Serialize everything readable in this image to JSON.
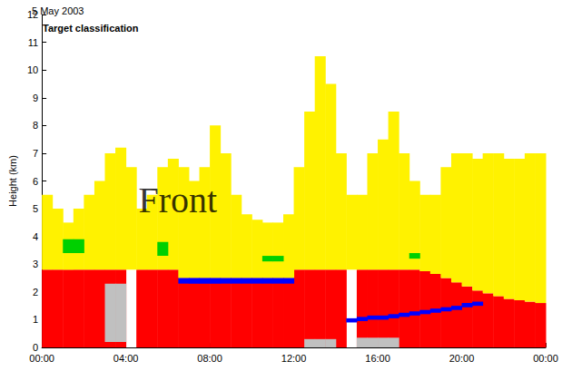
{
  "chart_data": {
    "type": "range",
    "title": "Target classification",
    "subtitle": "5 May 2003",
    "ylabel": "Height (km)",
    "annotations": [
      {
        "text": "Front",
        "x": 4.6,
        "y": 5.3
      }
    ],
    "x": [
      0,
      0.5,
      1,
      1.5,
      2,
      2.5,
      3,
      3.5,
      4,
      4.5,
      5,
      5.5,
      6,
      6.5,
      7,
      7.5,
      8,
      8.5,
      9,
      9.5,
      10,
      10.5,
      11,
      11.5,
      12,
      12.5,
      13,
      13.5,
      14,
      14.5,
      15,
      15.5,
      16,
      16.5,
      17,
      17.5,
      18,
      18.5,
      19,
      19.5,
      20,
      20.5,
      21,
      21.5,
      22,
      22.5,
      23,
      23.5
    ],
    "xlim": [
      0,
      24
    ],
    "xticks": [
      {
        "value": 0,
        "label": "00:00"
      },
      {
        "value": 4,
        "label": "04:00"
      },
      {
        "value": 8,
        "label": "08:00"
      },
      {
        "value": 12,
        "label": "12:00"
      },
      {
        "value": 16,
        "label": "16:00"
      },
      {
        "value": 20,
        "label": "20:00"
      },
      {
        "value": 24,
        "label": "00:00"
      }
    ],
    "ylim": [
      0,
      12
    ],
    "yticks": [
      0,
      1,
      2,
      3,
      4,
      5,
      6,
      7,
      8,
      9,
      10,
      11,
      12
    ],
    "grid": false,
    "series": [
      {
        "color": "#ff0000",
        "bottom": [
          0,
          0,
          0,
          0,
          0,
          0,
          0,
          0,
          null,
          0,
          0,
          0,
          0,
          0,
          0,
          0,
          0,
          0,
          0,
          0,
          0,
          0,
          0,
          0,
          0,
          0,
          0,
          0,
          0,
          null,
          0,
          0,
          0,
          0,
          0,
          0,
          0,
          0,
          0,
          0,
          0,
          0,
          0,
          0,
          0,
          0,
          0,
          0
        ],
        "top": [
          2.8,
          2.8,
          2.8,
          2.8,
          2.8,
          2.8,
          2.8,
          2.8,
          null,
          2.8,
          2.8,
          2.8,
          2.8,
          2.5,
          2.5,
          2.5,
          2.5,
          2.5,
          2.5,
          2.5,
          2.5,
          2.5,
          2.5,
          2.5,
          2.8,
          2.8,
          2.8,
          2.8,
          2.8,
          null,
          2.8,
          2.8,
          2.8,
          2.8,
          2.8,
          2.8,
          2.75,
          2.65,
          2.5,
          2.35,
          2.2,
          2.05,
          1.95,
          1.85,
          1.75,
          1.7,
          1.65,
          1.6
        ]
      },
      {
        "color": "#fff200",
        "bottom": [
          2.8,
          2.8,
          2.8,
          2.8,
          2.8,
          2.8,
          2.8,
          2.8,
          2.8,
          2.8,
          2.8,
          2.8,
          2.8,
          2.5,
          2.5,
          2.5,
          2.5,
          2.5,
          2.5,
          2.5,
          2.5,
          2.5,
          2.5,
          2.5,
          2.8,
          2.8,
          2.8,
          2.8,
          2.8,
          2.8,
          2.8,
          2.8,
          2.8,
          2.8,
          2.8,
          2.8,
          2.75,
          2.65,
          2.5,
          2.35,
          2.2,
          2.05,
          1.95,
          1.85,
          1.75,
          1.7,
          1.65,
          1.6
        ],
        "top": [
          5.5,
          5,
          4.5,
          5,
          5.5,
          6,
          7,
          7.2,
          6.5,
          5,
          5.5,
          6.5,
          6.8,
          6.5,
          6,
          6.5,
          8,
          7,
          5.5,
          4.8,
          4.6,
          4.5,
          4.5,
          4.8,
          6.5,
          8.5,
          10.5,
          9.5,
          7,
          5.5,
          5.5,
          7,
          7.5,
          8.5,
          7,
          6,
          5.5,
          5.5,
          6.5,
          7,
          7,
          6.8,
          7,
          7,
          6.8,
          6.8,
          7,
          7
        ]
      },
      {
        "color": "#c0c0c0",
        "bottom": [
          null,
          null,
          null,
          null,
          null,
          null,
          0.2,
          0.2,
          null,
          null,
          null,
          null,
          null,
          null,
          null,
          null,
          null,
          null,
          null,
          null,
          null,
          null,
          null,
          null,
          null,
          0,
          0,
          0,
          null,
          null,
          0,
          0,
          0,
          0,
          null,
          null,
          null,
          null,
          null,
          null,
          null,
          null,
          null,
          null,
          null,
          null,
          null,
          null
        ],
        "top": [
          null,
          null,
          null,
          null,
          null,
          null,
          2.3,
          2.3,
          null,
          null,
          null,
          null,
          null,
          null,
          null,
          null,
          null,
          null,
          null,
          null,
          null,
          null,
          null,
          null,
          null,
          0.3,
          0.3,
          0.3,
          null,
          null,
          0.35,
          0.35,
          0.35,
          0.35,
          null,
          null,
          null,
          null,
          null,
          null,
          null,
          null,
          null,
          null,
          null,
          null,
          null,
          null
        ]
      },
      {
        "color": "#00d000",
        "bottom": [
          null,
          null,
          3.4,
          3.4,
          null,
          null,
          null,
          null,
          null,
          null,
          null,
          3.3,
          null,
          null,
          null,
          null,
          null,
          null,
          null,
          null,
          null,
          3.1,
          3.1,
          null,
          null,
          null,
          null,
          null,
          null,
          null,
          null,
          null,
          null,
          null,
          null,
          3.2,
          null,
          null,
          null,
          null,
          null,
          null,
          null,
          null,
          null,
          null,
          null,
          null
        ],
        "top": [
          null,
          null,
          3.9,
          3.9,
          null,
          null,
          null,
          null,
          null,
          null,
          null,
          3.8,
          null,
          null,
          null,
          null,
          null,
          null,
          null,
          null,
          null,
          3.3,
          3.3,
          null,
          null,
          null,
          null,
          null,
          null,
          null,
          null,
          null,
          null,
          null,
          null,
          3.4,
          null,
          null,
          null,
          null,
          null,
          null,
          null,
          null,
          null,
          null,
          null,
          null
        ]
      },
      {
        "color": "#0000ff",
        "bottom": [
          null,
          null,
          null,
          null,
          null,
          null,
          null,
          null,
          null,
          null,
          null,
          null,
          null,
          2.3,
          2.3,
          2.3,
          2.3,
          2.3,
          2.3,
          2.3,
          2.3,
          2.3,
          2.3,
          2.3,
          null,
          null,
          null,
          null,
          null,
          0.9,
          0.95,
          1,
          1,
          1.05,
          1.1,
          1.15,
          1.2,
          1.25,
          1.3,
          1.35,
          1.45,
          1.5,
          null,
          null,
          null,
          null,
          null,
          null
        ],
        "top": [
          null,
          null,
          null,
          null,
          null,
          null,
          null,
          null,
          null,
          null,
          null,
          null,
          null,
          2.5,
          2.5,
          2.5,
          2.5,
          2.5,
          2.5,
          2.5,
          2.5,
          2.5,
          2.5,
          2.5,
          null,
          null,
          null,
          null,
          null,
          1.05,
          1.1,
          1.15,
          1.15,
          1.2,
          1.25,
          1.3,
          1.35,
          1.4,
          1.45,
          1.5,
          1.6,
          1.65,
          null,
          null,
          null,
          null,
          null,
          null
        ]
      }
    ]
  }
}
